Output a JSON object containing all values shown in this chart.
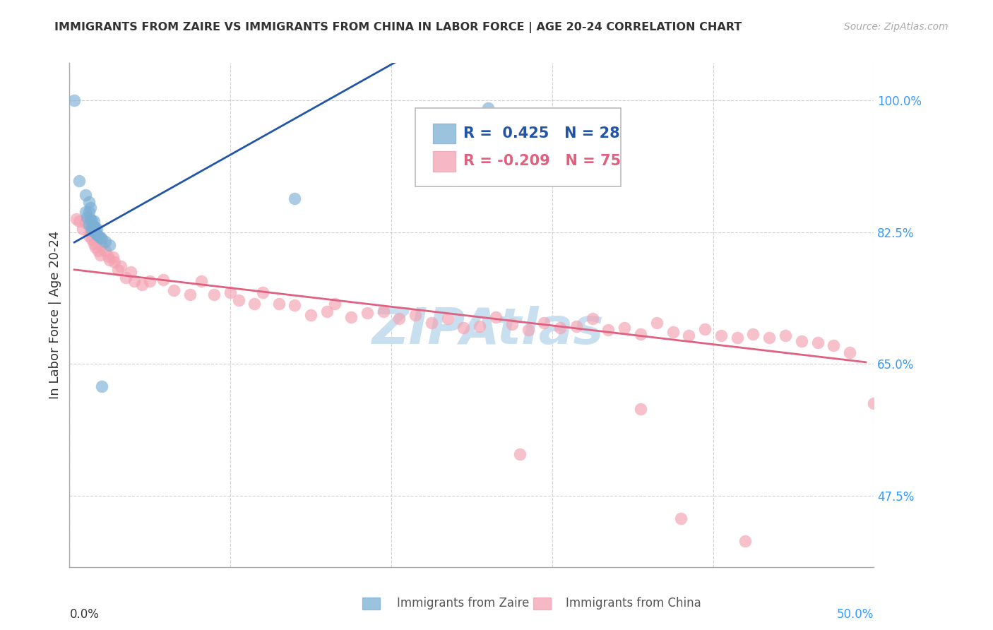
{
  "title": "IMMIGRANTS FROM ZAIRE VS IMMIGRANTS FROM CHINA IN LABOR FORCE | AGE 20-24 CORRELATION CHART",
  "source": "Source: ZipAtlas.com",
  "ylabel": "In Labor Force | Age 20-24",
  "xmin": 0.0,
  "xmax": 0.5,
  "ymin": 0.38,
  "ymax": 1.05,
  "yticks": [
    0.475,
    0.65,
    0.825,
    1.0
  ],
  "ytick_labels": [
    "47.5%",
    "65.0%",
    "82.5%",
    "100.0%"
  ],
  "xticks": [
    0.0,
    0.1,
    0.2,
    0.3,
    0.4,
    0.5
  ],
  "zaire_R": 0.425,
  "zaire_N": 28,
  "china_R": -0.209,
  "china_N": 75,
  "zaire_color": "#7BAFD4",
  "china_color": "#F4A0B0",
  "zaire_line_color": "#2255AA",
  "china_line_color": "#E06080",
  "watermark_color": "#C8DFF0",
  "zaire_x": [
    0.003,
    0.006,
    0.009,
    0.01,
    0.011,
    0.012,
    0.013,
    0.014,
    0.015,
    0.016,
    0.017,
    0.018,
    0.019,
    0.02,
    0.021,
    0.022,
    0.023,
    0.024,
    0.025,
    0.026,
    0.027,
    0.028,
    0.03,
    0.032,
    0.035,
    0.038,
    0.14,
    0.26
  ],
  "zaire_y": [
    1.0,
    0.89,
    0.875,
    0.865,
    0.855,
    0.855,
    0.855,
    0.85,
    0.848,
    0.848,
    0.845,
    0.845,
    0.84,
    0.838,
    0.838,
    0.838,
    0.835,
    0.835,
    0.835,
    0.835,
    0.83,
    0.83,
    0.825,
    0.82,
    0.815,
    0.8,
    0.87,
    0.99
  ],
  "china_x": [
    0.003,
    0.005,
    0.007,
    0.008,
    0.009,
    0.01,
    0.011,
    0.012,
    0.013,
    0.014,
    0.015,
    0.017,
    0.018,
    0.019,
    0.02,
    0.022,
    0.023,
    0.025,
    0.027,
    0.028,
    0.03,
    0.032,
    0.035,
    0.038,
    0.04,
    0.045,
    0.05,
    0.055,
    0.06,
    0.065,
    0.07,
    0.08,
    0.085,
    0.09,
    0.095,
    0.1,
    0.11,
    0.12,
    0.13,
    0.14,
    0.155,
    0.165,
    0.175,
    0.185,
    0.195,
    0.205,
    0.215,
    0.225,
    0.235,
    0.25,
    0.26,
    0.27,
    0.28,
    0.29,
    0.305,
    0.315,
    0.33,
    0.34,
    0.355,
    0.365,
    0.37,
    0.38,
    0.39,
    0.41,
    0.425,
    0.435,
    0.45,
    0.455,
    0.46,
    0.47,
    0.475,
    0.48,
    0.485,
    0.49,
    0.495
  ],
  "china_y": [
    0.84,
    0.85,
    0.84,
    0.83,
    0.845,
    0.825,
    0.82,
    0.81,
    0.83,
    0.82,
    0.81,
    0.8,
    0.79,
    0.81,
    0.8,
    0.795,
    0.785,
    0.78,
    0.775,
    0.79,
    0.76,
    0.775,
    0.76,
    0.77,
    0.755,
    0.745,
    0.76,
    0.73,
    0.75,
    0.735,
    0.735,
    0.745,
    0.73,
    0.72,
    0.735,
    0.73,
    0.715,
    0.72,
    0.71,
    0.72,
    0.705,
    0.715,
    0.7,
    0.725,
    0.71,
    0.7,
    0.7,
    0.71,
    0.695,
    0.705,
    0.715,
    0.705,
    0.71,
    0.695,
    0.7,
    0.695,
    0.7,
    0.68,
    0.71,
    0.69,
    0.685,
    0.685,
    0.68,
    0.7,
    0.685,
    0.69,
    0.685,
    0.69,
    0.7,
    0.675,
    0.69,
    0.68,
    0.69,
    0.68,
    0.59
  ]
}
